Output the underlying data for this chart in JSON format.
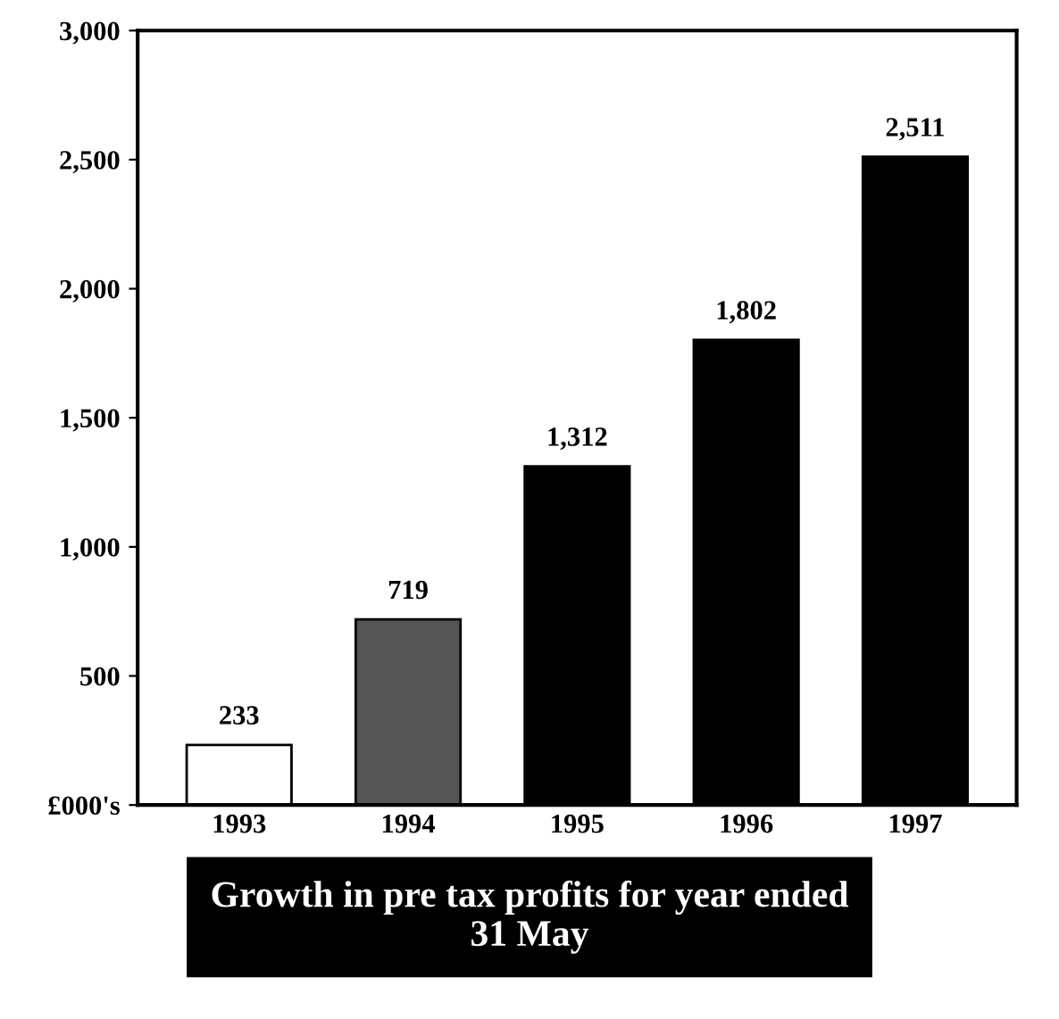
{
  "chart_data": {
    "type": "bar",
    "title": "Growth in pre tax profits for year ended\n31 May",
    "categories": [
      "1993",
      "1994",
      "1995",
      "1996",
      "1997"
    ],
    "values": [
      233,
      719,
      1312,
      1802,
      2511
    ],
    "colors": [
      "#ffffff",
      "#555555",
      "#000000",
      "#000000",
      "#000000"
    ],
    "value_labels": [
      "233",
      "719",
      "1,312",
      "1,802",
      "2,511"
    ],
    "ylim": [
      0,
      3000
    ],
    "yticks": [
      {
        "value": 0,
        "label": "£000's"
      },
      {
        "value": 500,
        "label": "500"
      },
      {
        "value": 1000,
        "label": "1,000"
      },
      {
        "value": 1500,
        "label": "1,500"
      },
      {
        "value": 2000,
        "label": "2,000"
      },
      {
        "value": 2500,
        "label": "2,500"
      },
      {
        "value": 3000,
        "label": "3,000"
      }
    ],
    "grid": false,
    "legend": false
  }
}
